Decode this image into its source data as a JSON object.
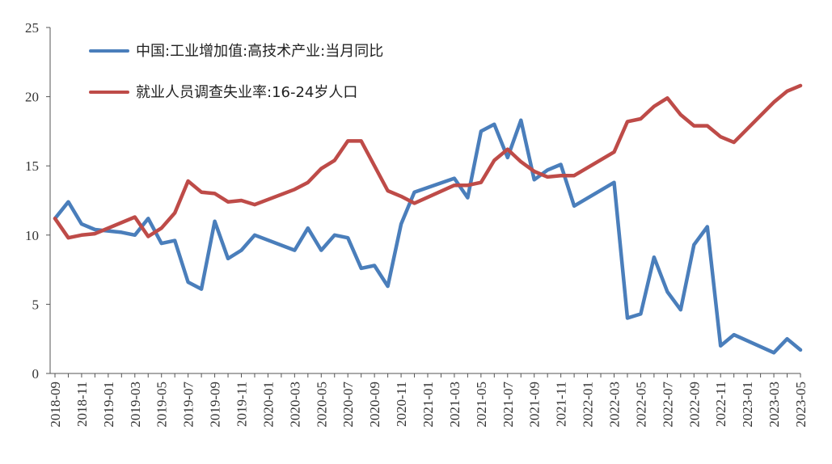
{
  "chart_data": {
    "type": "line",
    "title": "",
    "xlabel": "",
    "ylabel": "",
    "ylim": [
      0,
      25
    ],
    "yticks": [
      0,
      5,
      10,
      15,
      20,
      25
    ],
    "grid": false,
    "legend_position": "top-left",
    "x": [
      "2018-09",
      "2018-10",
      "2018-11",
      "2018-12",
      "2019-01",
      "2019-02",
      "2019-03",
      "2019-04",
      "2019-05",
      "2019-06",
      "2019-07",
      "2019-08",
      "2019-09",
      "2019-10",
      "2019-11",
      "2019-12",
      "2020-01",
      "2020-02",
      "2020-03",
      "2020-04",
      "2020-05",
      "2020-06",
      "2020-07",
      "2020-08",
      "2020-09",
      "2020-10",
      "2020-11",
      "2020-12",
      "2021-01",
      "2021-02",
      "2021-03",
      "2021-04",
      "2021-05",
      "2021-06",
      "2021-07",
      "2021-08",
      "2021-09",
      "2021-10",
      "2021-11",
      "2021-12",
      "2022-01",
      "2022-02",
      "2022-03",
      "2022-04",
      "2022-05",
      "2022-06",
      "2022-07",
      "2022-08",
      "2022-09",
      "2022-10",
      "2022-11",
      "2022-12",
      "2023-01",
      "2023-02",
      "2023-03",
      "2023-04",
      "2023-05"
    ],
    "xtick_labels": [
      "2018-09",
      "2018-11",
      "2019-01",
      "2019-03",
      "2019-05",
      "2019-07",
      "2019-09",
      "2019-11",
      "2020-01",
      "2020-03",
      "2020-05",
      "2020-07",
      "2020-09",
      "2020-11",
      "2021-01",
      "2021-03",
      "2021-05",
      "2021-07",
      "2021-09",
      "2021-11",
      "2022-01",
      "2022-03",
      "2022-05",
      "2022-07",
      "2022-09",
      "2022-11",
      "2023-01",
      "2023-03",
      "2023-05"
    ],
    "series": [
      {
        "name": "中国:工业增加值:高技术产业:当月同比",
        "color": "#4a7ebb",
        "values": [
          11.2,
          12.4,
          10.8,
          10.4,
          null,
          10.2,
          10.0,
          11.2,
          9.4,
          9.6,
          6.6,
          6.1,
          11.0,
          8.3,
          8.9,
          10.0,
          null,
          null,
          8.9,
          10.5,
          8.9,
          10.0,
          9.8,
          7.6,
          7.8,
          6.3,
          10.8,
          13.1,
          null,
          null,
          14.1,
          12.7,
          17.5,
          18.0,
          15.6,
          18.3,
          14.0,
          14.7,
          15.1,
          12.1,
          null,
          null,
          13.8,
          4.0,
          4.3,
          8.4,
          5.9,
          4.6,
          9.3,
          10.6,
          2.0,
          2.8,
          null,
          null,
          1.5,
          2.5,
          1.7
        ]
      },
      {
        "name": "就业人员调查失业率:16-24岁人口",
        "color": "#be4b48",
        "values": [
          11.2,
          9.8,
          10.0,
          10.1,
          null,
          null,
          11.3,
          9.9,
          10.5,
          11.6,
          13.9,
          13.1,
          13.0,
          12.4,
          12.5,
          12.2,
          null,
          null,
          13.3,
          13.8,
          14.8,
          15.4,
          16.8,
          16.8,
          null,
          13.2,
          12.8,
          12.3,
          null,
          null,
          13.6,
          13.6,
          13.8,
          15.4,
          16.2,
          15.3,
          14.6,
          14.2,
          14.3,
          14.3,
          null,
          null,
          16.0,
          18.2,
          18.4,
          19.3,
          19.9,
          18.7,
          17.9,
          17.9,
          17.1,
          16.7,
          null,
          null,
          19.6,
          20.4,
          20.8
        ]
      }
    ]
  }
}
